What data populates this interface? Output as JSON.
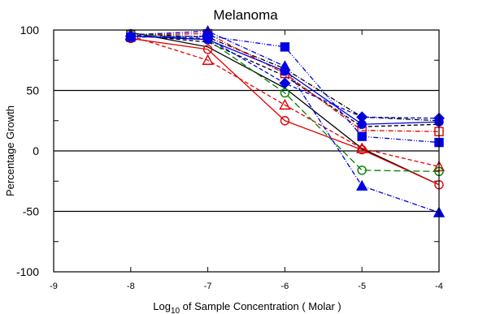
{
  "chart_data": {
    "type": "line",
    "title": "Melanoma",
    "xlabel_prefix": "Log",
    "xlabel_sub": "10",
    "xlabel_suffix": " of Sample Concentration ( Molar )",
    "ylabel": "Percentage Growth",
    "xlim": [
      -9,
      -4
    ],
    "ylim": [
      -100,
      100
    ],
    "x_ticks": [
      -9,
      -8,
      -7,
      -6,
      -5,
      -4
    ],
    "x_tick_labels": [
      "-9",
      "-8",
      "-7",
      "-6",
      "-5",
      "-4"
    ],
    "y_ticks": [
      100,
      50,
      0,
      -50,
      -100
    ],
    "y_tick_labels": [
      "100",
      "50",
      "0",
      "-50",
      "-100"
    ],
    "reference_lines_y": [
      50,
      0,
      -50
    ],
    "x": [
      -8,
      -7,
      -6,
      -5,
      -4
    ],
    "series": [
      {
        "color": "#000000",
        "dash": "",
        "marker": "none",
        "values": [
          98,
          86,
          52,
          2,
          -28
        ]
      },
      {
        "color": "#000000",
        "dash": "5,3",
        "marker": "none",
        "values": [
          96,
          90,
          62,
          20,
          22
        ]
      },
      {
        "color": "#000000",
        "dash": "6,2,1,2",
        "marker": "none",
        "values": [
          97,
          94,
          68,
          28,
          25
        ]
      },
      {
        "color": "#e00000",
        "dash": "",
        "marker": "circle-open",
        "values": [
          93,
          84,
          25,
          1,
          -28
        ]
      },
      {
        "color": "#e00000",
        "dash": "5,3",
        "marker": "triangle-open",
        "values": [
          95,
          75,
          38,
          2,
          -13
        ]
      },
      {
        "color": "#e00000",
        "dash": "6,2,1,2",
        "marker": "square-open",
        "values": [
          96,
          97,
          64,
          17,
          16
        ]
      },
      {
        "color": "#008000",
        "dash": "8,4",
        "marker": "circle-open",
        "values": [
          97,
          92,
          48,
          -16,
          -17
        ]
      },
      {
        "color": "#0000e0",
        "dash": "6,2,1,2,1,2",
        "marker": "square-filled",
        "values": [
          94,
          95,
          86,
          12,
          7
        ]
      },
      {
        "color": "#0000e0",
        "dash": "6,2,1,2",
        "marker": "triangle-filled",
        "values": [
          96,
          99,
          70,
          -29,
          -51
        ]
      },
      {
        "color": "#0000e0",
        "dash": "5,3",
        "marker": "diamond-filled",
        "values": [
          95,
          93,
          56,
          28,
          27
        ]
      },
      {
        "color": "#0000e0",
        "dash": "",
        "marker": "circle-filled",
        "values": [
          95,
          92,
          66,
          22,
          24
        ]
      }
    ]
  }
}
